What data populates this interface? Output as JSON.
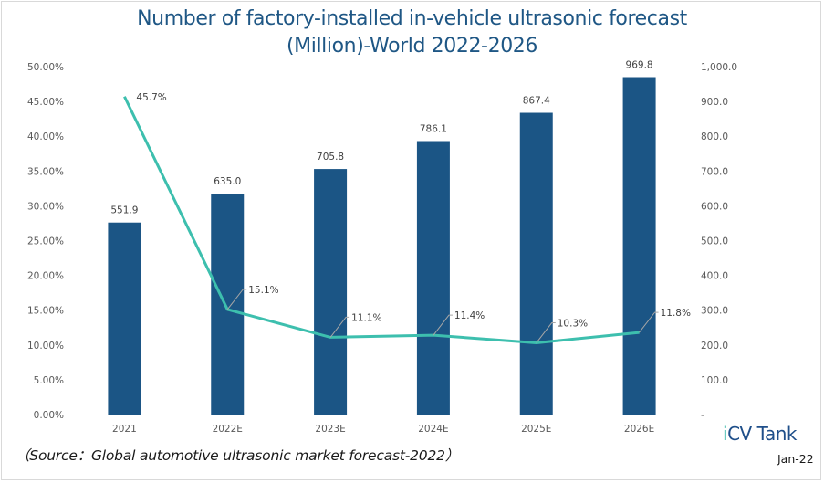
{
  "title_line1": "Number of  factory-installed in-vehicle ultrasonic forecast",
  "title_line2": "(Million)-World  2022-2026",
  "source": "（Source：Global automotive ultrasonic market forecast-2022）",
  "logo": {
    "prefix": "i",
    "rest": "CV Tank"
  },
  "date": "Jan-22",
  "colors": {
    "bar": "#1b5585",
    "line": "#3dbfae",
    "title": "#1f5785",
    "leader": "#a6a6a6"
  },
  "chart_data": {
    "type": "bar+line",
    "title": "Number of factory-installed in-vehicle ultrasonic forecast (Million)-World 2022-2026",
    "categories": [
      "2021",
      "2022E",
      "2023E",
      "2024E",
      "2025E",
      "2026E"
    ],
    "series": [
      {
        "name": "Volume (Million)",
        "type": "bar",
        "axis": "right",
        "values": [
          551.9,
          635.0,
          705.8,
          786.1,
          867.4,
          969.8
        ],
        "labels": [
          "551.9",
          "635.0",
          "705.8",
          "786.1",
          "867.4",
          "969.8"
        ]
      },
      {
        "name": "Growth rate",
        "type": "line",
        "axis": "left",
        "values": [
          45.7,
          15.1,
          11.1,
          11.4,
          10.3,
          11.8
        ],
        "labels": [
          "45.7%",
          "15.1%",
          "11.1%",
          "11.4%",
          "10.3%",
          "11.8%"
        ]
      }
    ],
    "left_axis": {
      "range": [
        0,
        50
      ],
      "ticks": [
        "0.00%",
        "5.00%",
        "10.00%",
        "15.00%",
        "20.00%",
        "25.00%",
        "30.00%",
        "35.00%",
        "40.00%",
        "45.00%",
        "50.00%"
      ]
    },
    "right_axis": {
      "range": [
        0,
        1000
      ],
      "ticks": [
        "-",
        "100.0",
        "200.0",
        "300.0",
        "400.0",
        "500.0",
        "600.0",
        "700.0",
        "800.0",
        "900.0",
        "1,000.0"
      ]
    },
    "grid": false,
    "legend": "none"
  }
}
